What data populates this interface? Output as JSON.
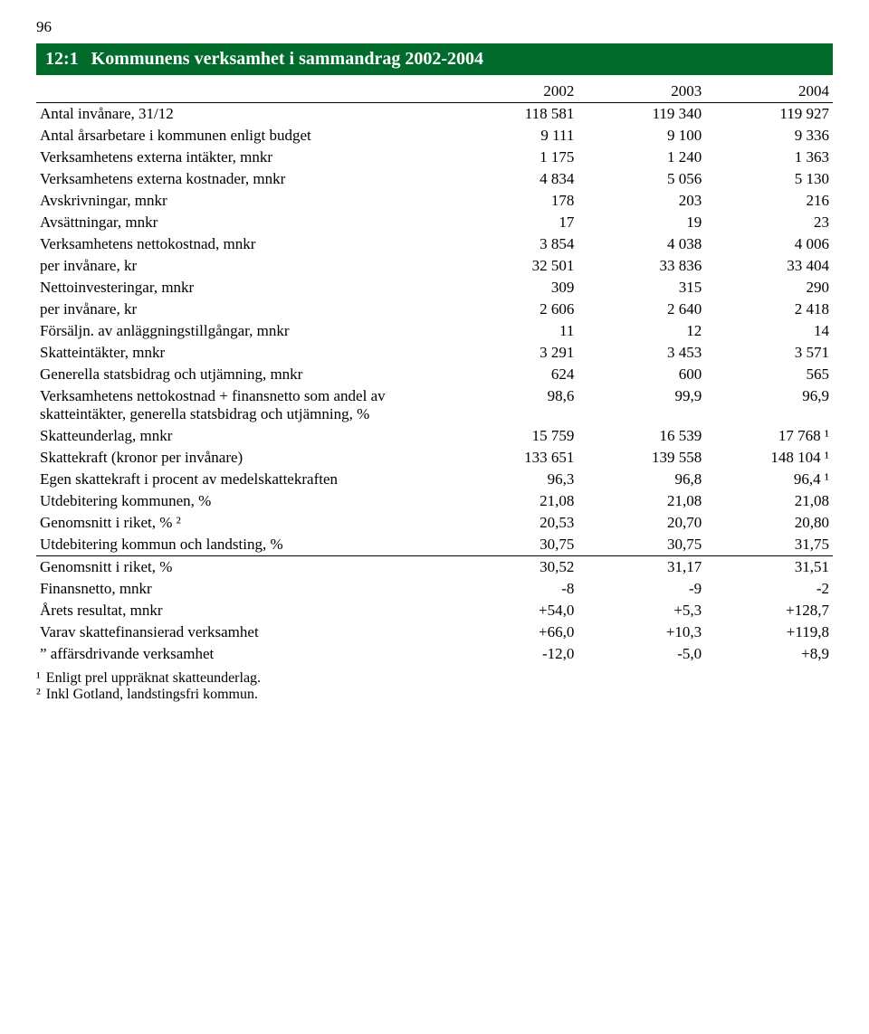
{
  "page_number": "96",
  "title": {
    "num": "12:1",
    "text": "Kommunens verksamhet i sammandrag 2002-2004"
  },
  "columns": [
    "2002",
    "2003",
    "2004"
  ],
  "rows": [
    {
      "label": "Antal invånare, 31/12",
      "vals": [
        "118 581",
        "119 340",
        "119 927"
      ]
    },
    {
      "label": "Antal årsarbetare i kommunen enligt budget",
      "vals": [
        "9 111",
        "9 100",
        "9 336"
      ]
    },
    {
      "label": "Verksamhetens externa intäkter, mnkr",
      "vals": [
        "1 175",
        "1 240",
        "1 363"
      ]
    },
    {
      "label": "Verksamhetens externa kostnader, mnkr",
      "vals": [
        "4 834",
        "5 056",
        "5 130"
      ]
    },
    {
      "label": "Avskrivningar, mnkr",
      "vals": [
        "178",
        "203",
        "216"
      ]
    },
    {
      "label": "Avsättningar, mnkr",
      "vals": [
        "17",
        "19",
        "23"
      ]
    },
    {
      "label": "Verksamhetens nettokostnad, mnkr",
      "vals": [
        "3 854",
        "4 038",
        "4 006"
      ]
    },
    {
      "label": "per invånare, kr",
      "sub": true,
      "vals": [
        "32 501",
        "33 836",
        "33 404"
      ]
    },
    {
      "label": "Nettoinvesteringar, mnkr",
      "vals": [
        "309",
        "315",
        "290"
      ]
    },
    {
      "label": "per invånare, kr",
      "sub": true,
      "vals": [
        "2 606",
        "2 640",
        "2 418"
      ]
    },
    {
      "label": "Försäljn. av anläggningstillgångar, mnkr",
      "vals": [
        "11",
        "12",
        "14"
      ]
    },
    {
      "label": "Skatteintäkter, mnkr",
      "vals": [
        "3 291",
        "3 453",
        "3 571"
      ]
    },
    {
      "label": "Generella statsbidrag och utjämning, mnkr",
      "vals": [
        "624",
        "600",
        "565"
      ]
    },
    {
      "label": "Verksamhetens nettokostnad + finansnetto som andel av skatteintäkter, generella statsbidrag och utjämning, %",
      "vals": [
        "98,6",
        "99,9",
        "96,9"
      ]
    },
    {
      "label": "Skatteunderlag, mnkr",
      "vals": [
        "15 759",
        "16 539",
        "17 768 ¹"
      ]
    },
    {
      "label": "Skattekraft (kronor per invånare)",
      "vals": [
        "133 651",
        "139 558",
        "148 104 ¹"
      ]
    },
    {
      "label": "Egen skattekraft i procent av medelskattekraften",
      "vals": [
        "96,3",
        "96,8",
        "96,4 ¹"
      ]
    },
    {
      "label": "Utdebitering kommunen, %",
      "vals": [
        "21,08",
        "21,08",
        "21,08"
      ]
    },
    {
      "label": "Genomsnitt i riket, % ²",
      "vals": [
        "20,53",
        "20,70",
        "20,80"
      ]
    },
    {
      "label": "Utdebitering kommun och landsting, %",
      "vals": [
        "30,75",
        "30,75",
        "31,75"
      ]
    }
  ],
  "rows_section2": [
    {
      "label": "Genomsnitt i riket, %",
      "vals": [
        "30,52",
        "31,17",
        "31,51"
      ]
    },
    {
      "label": "Finansnetto, mnkr",
      "vals": [
        "-8",
        "-9",
        "-2"
      ]
    },
    {
      "label": "Årets resultat, mnkr",
      "vals": [
        "+54,0",
        "+5,3",
        "+128,7"
      ]
    },
    {
      "label": "Varav skattefinansierad verksamhet",
      "sub": true,
      "vals": [
        "+66,0",
        "+10,3",
        "+119,8"
      ]
    },
    {
      "label": "”      affärsdrivande verksamhet",
      "sub": true,
      "vals": [
        "-12,0",
        "-5,0",
        "+8,9"
      ]
    }
  ],
  "footnotes": [
    {
      "mark": "¹",
      "text": "Enligt prel uppräknat skatteunderlag."
    },
    {
      "mark": "²",
      "text": "Inkl Gotland, landstingsfri kommun."
    }
  ],
  "style": {
    "title_bg": "#006b2b",
    "title_fg": "#ffffff",
    "font_family": "Times New Roman",
    "col_widths_pct": [
      52,
      16,
      16,
      16
    ]
  }
}
